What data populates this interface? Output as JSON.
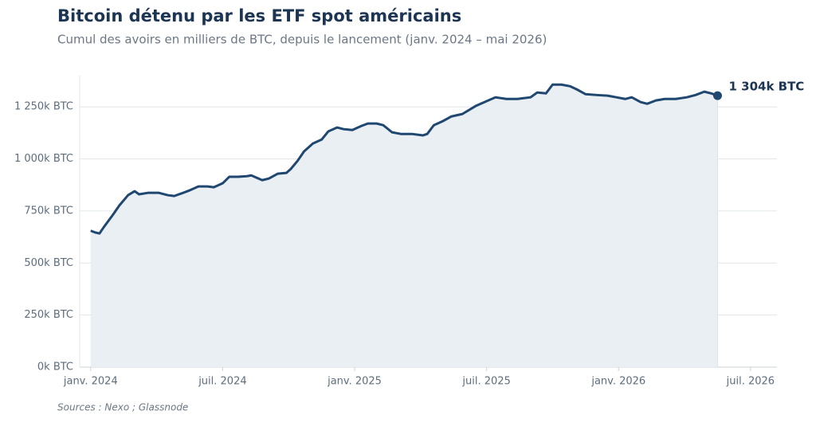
{
  "chart_data": {
    "type": "area",
    "title": "Bitcoin détenu par les ETF spot américains",
    "subtitle": "Cumul des avoirs en milliers de BTC, depuis le lancement (janv. 2024 – mai 2026)",
    "source": "Sources : Nexo ; Glassnode",
    "x": [
      0.0,
      0.2,
      0.4,
      0.6,
      1.0,
      1.3,
      1.7,
      2.0,
      2.2,
      2.6,
      3.1,
      3.5,
      3.8,
      4.2,
      4.5,
      4.9,
      5.3,
      5.6,
      6.0,
      6.3,
      6.7,
      7.1,
      7.3,
      7.8,
      8.1,
      8.5,
      8.9,
      9.1,
      9.4,
      9.7,
      10.1,
      10.5,
      10.8,
      11.2,
      11.5,
      11.9,
      12.3,
      12.6,
      13.0,
      13.3,
      13.7,
      14.1,
      14.6,
      15.1,
      15.3,
      15.6,
      16.0,
      16.4,
      16.9,
      17.5,
      17.9,
      18.4,
      18.9,
      19.4,
      20.0,
      20.3,
      20.7,
      21.0,
      21.4,
      21.8,
      22.1,
      22.5,
      23.0,
      23.5,
      23.9,
      24.3,
      24.6,
      25.0,
      25.3,
      25.7,
      26.1,
      26.6,
      27.1,
      27.5,
      27.9,
      28.2,
      28.5
    ],
    "series": [
      {
        "color": "#1f4770",
        "fill": "#e9eff3",
        "values": [
          655,
          647,
          642,
          673,
          730,
          776,
          826,
          845,
          830,
          837,
          837,
          826,
          822,
          837,
          849,
          868,
          868,
          864,
          883,
          914,
          914,
          917,
          921,
          898,
          906,
          929,
          933,
          952,
          990,
          1036,
          1074,
          1093,
          1132,
          1151,
          1143,
          1139,
          1158,
          1170,
          1170,
          1162,
          1128,
          1120,
          1120,
          1113,
          1120,
          1162,
          1181,
          1204,
          1216,
          1254,
          1273,
          1296,
          1288,
          1288,
          1296,
          1319,
          1315,
          1357,
          1357,
          1349,
          1334,
          1311,
          1307,
          1304,
          1296,
          1288,
          1296,
          1273,
          1265,
          1281,
          1288,
          1288,
          1296,
          1307,
          1323,
          1315,
          1304
        ]
      }
    ],
    "annotation": {
      "x": 28.5,
      "value": 1304,
      "label": "1 304k BTC"
    },
    "xlim": [
      -0.5,
      31.2
    ],
    "xticks": [
      {
        "value": 0,
        "label": "janv. 2024"
      },
      {
        "value": 6,
        "label": "juil. 2024"
      },
      {
        "value": 12,
        "label": "janv. 2025"
      },
      {
        "value": 18,
        "label": "juil. 2025"
      },
      {
        "value": 24,
        "label": "janv. 2026"
      },
      {
        "value": 30,
        "label": "juil. 2026"
      }
    ],
    "ylim": [
      0,
      1400
    ],
    "yticks": [
      {
        "value": 0,
        "label": "0k BTC"
      },
      {
        "value": 250,
        "label": "250k BTC"
      },
      {
        "value": 500,
        "label": "500k BTC"
      },
      {
        "value": 750,
        "label": "750k BTC"
      },
      {
        "value": 1000,
        "label": "1 000k BTC"
      },
      {
        "value": 1250,
        "label": "1 250k BTC"
      }
    ],
    "grid": true
  }
}
